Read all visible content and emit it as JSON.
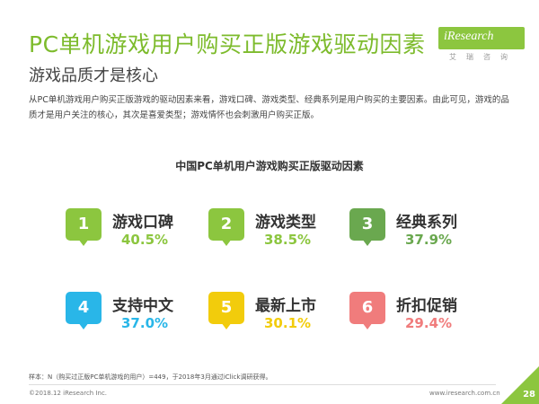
{
  "header": {
    "title": "PC单机游戏用户购买正版游戏驱动因素",
    "subtitle": "游戏品质才是核心"
  },
  "logo": {
    "text": "iResearch",
    "sub": "艾瑞咨询"
  },
  "description": "从PC单机游戏用户购买正版游戏的驱动因素来看，游戏口碑、游戏类型、经典系列是用户购买的主要因素。由此可见，游戏的品质才是用户关注的核心，其次是喜爱类型；游戏情怀也会刺激用户购买正版。",
  "chart_title": "中国PC单机用户游戏购买正版驱动因素",
  "factors": [
    {
      "rank": "1",
      "name": "游戏口碑",
      "value": "40.5%",
      "color": "#8cc63f"
    },
    {
      "rank": "2",
      "name": "游戏类型",
      "value": "38.5%",
      "color": "#8cc63f"
    },
    {
      "rank": "3",
      "name": "经典系列",
      "value": "37.9%",
      "color": "#6aa84f"
    },
    {
      "rank": "4",
      "name": "支持中文",
      "value": "37.0%",
      "color": "#29b6e8"
    },
    {
      "rank": "5",
      "name": "最新上市",
      "value": "30.1%",
      "color": "#f2cc0c"
    },
    {
      "rank": "6",
      "name": "折扣促销",
      "value": "29.4%",
      "color": "#f07c7c"
    }
  ],
  "note": "样本：N（购买过正版PC单机游戏的用户）=449，于2018年3月通过iClick调研获得。",
  "footer": {
    "copyright": "©2018.12 iResearch Inc.",
    "website": "www.iresearch.com.cn",
    "page": "28"
  }
}
